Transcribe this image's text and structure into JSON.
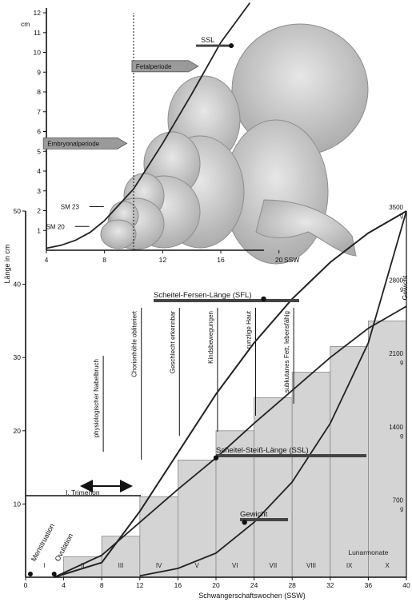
{
  "chart_data": [
    {
      "type": "line",
      "panel": "inset",
      "ylabel": "cm",
      "xlabel": "SSW",
      "xlim": [
        4,
        22
      ],
      "ylim": [
        0,
        12
      ],
      "x_ticks": [
        4,
        8,
        12,
        16,
        20
      ],
      "y_ticks": [
        1,
        2,
        3,
        4,
        5,
        6,
        7,
        8,
        9,
        10,
        11,
        12
      ],
      "divider_x": 10,
      "annotations": [
        {
          "text": "Fetalperiode",
          "x": 12,
          "y": 9.3
        },
        {
          "text": "Embryonalperiode",
          "x": 6.5,
          "y": 5.4
        },
        {
          "text": "SSL",
          "x": 16.5,
          "y": 10.5
        },
        {
          "text": "SM 23",
          "x": 7.4,
          "y": 2.2
        },
        {
          "text": "SM 20",
          "x": 6.4,
          "y": 1.2
        }
      ],
      "series": [
        {
          "name": "",
          "x": [
            4,
            5,
            6,
            7,
            8,
            9,
            10,
            12,
            14,
            16,
            18
          ],
          "values": [
            0.1,
            0.25,
            0.5,
            0.9,
            1.5,
            2.3,
            3.1,
            5.4,
            7.9,
            10.5,
            12.5
          ]
        }
      ]
    },
    {
      "type": "line",
      "panel": "main",
      "xlabel": "Schwangerschaftswochen (SSW)",
      "ylabel": "Länge in cm",
      "y2label": "Gewicht",
      "xlim": [
        0,
        40
      ],
      "ylim": [
        0,
        50
      ],
      "x_ticks": [
        0,
        4,
        8,
        12,
        16,
        20,
        24,
        28,
        32,
        36,
        40
      ],
      "y_ticks": [
        10,
        20,
        30,
        40,
        50
      ],
      "y2_ticks": [
        "700 g",
        "1400 g",
        "2100 g",
        "2800 g",
        "3500 g"
      ],
      "month_bars": {
        "label": "Lunarmonate",
        "categories": [
          "I",
          "II",
          "III",
          "IV",
          "V",
          "VI",
          "VII",
          "VIII",
          "IX",
          "X"
        ],
        "values": [
          0,
          2.8,
          5.6,
          11,
          16,
          20,
          24.5,
          28,
          31.5,
          35
        ]
      },
      "series": [
        {
          "name": "Scheitel-Fersen-Länge (SFL)",
          "x": [
            3,
            8,
            12,
            16,
            20,
            24,
            28,
            32,
            36,
            40
          ],
          "values": [
            0,
            2,
            9,
            17,
            25,
            32,
            38,
            43,
            47,
            50
          ]
        },
        {
          "name": "Scheitel-Steiß-Länge (SSL)",
          "x": [
            3,
            8,
            12,
            16,
            20,
            24,
            28,
            32,
            36,
            40
          ],
          "values": [
            0,
            3,
            7.5,
            12,
            16.3,
            21,
            25.5,
            30,
            34,
            37
          ]
        },
        {
          "name": "Gewicht",
          "x": [
            12,
            16,
            20,
            24,
            28,
            32,
            36,
            40
          ],
          "values": [
            0.2,
            1.2,
            3.3,
            7.5,
            13,
            21,
            32,
            50
          ]
        }
      ],
      "milestones": [
        "physiologischer Nabelbruch",
        "Chorionhöhle obliteriert",
        "Geschlecht erkennbar",
        "Kindsbewegungen",
        "runzlige Haut",
        "subkutanes Fett, lebensfähig"
      ],
      "annotations": [
        {
          "text": "I. Trimenon",
          "x": 6,
          "y": 11
        },
        {
          "text": "Menstruation",
          "x": 0.5,
          "y": 1
        },
        {
          "text": "Ovulation",
          "x": 3,
          "y": 1
        }
      ]
    }
  ],
  "colors": {
    "line": "#222222",
    "axis": "#111111",
    "bar_fill": "#d4d4d4",
    "bar_stroke": "#888888",
    "label_bar": "#444444",
    "fetus": "#bdbdbd"
  },
  "icons": [
    "fetus-illustration"
  ]
}
